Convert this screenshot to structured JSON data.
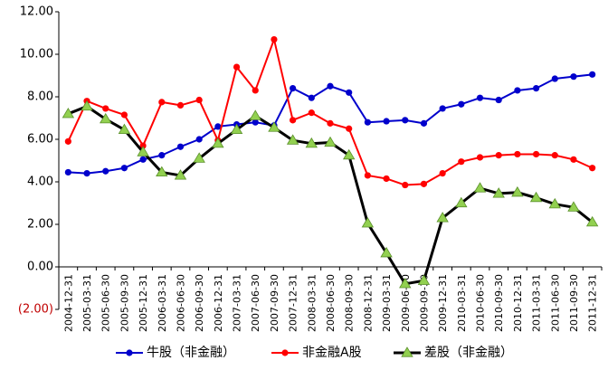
{
  "chart_data": {
    "type": "line",
    "title": "",
    "xlabel": "",
    "ylabel": "",
    "ylim": [
      -2,
      12
    ],
    "yticks": [
      -2,
      0,
      2,
      4,
      6,
      8,
      10,
      12
    ],
    "ytick_labels": [
      "(2.00)",
      "0.00",
      "2.00",
      "4.00",
      "6.00",
      "8.00",
      "10.00",
      "12.00"
    ],
    "negative_tick_color": "#c00000",
    "grid": false,
    "legend_position": "bottom",
    "categories": [
      "2004-12-31",
      "2005-03-31",
      "2005-06-30",
      "2005-09-30",
      "2005-12-31",
      "2006-03-31",
      "2006-06-30",
      "2006-09-30",
      "2006-12-31",
      "2007-03-31",
      "2007-06-30",
      "2007-09-30",
      "2007-12-31",
      "2008-03-31",
      "2008-06-30",
      "2008-09-30",
      "2008-12-31",
      "2009-03-31",
      "2009-06-30",
      "2009-09-30",
      "2009-12-31",
      "2010-03-31",
      "2010-06-30",
      "2010-09-30",
      "2010-12-31",
      "2011-03-31",
      "2011-06-30",
      "2011-09-30",
      "2011-12-31"
    ],
    "series": [
      {
        "name": "牛股（非金融）",
        "color": "#0000cc",
        "marker": "circle",
        "values": [
          4.45,
          4.4,
          4.5,
          4.65,
          5.05,
          5.25,
          5.65,
          6.0,
          6.6,
          6.7,
          6.8,
          6.65,
          8.4,
          7.95,
          8.5,
          8.2,
          6.8,
          6.85,
          6.9,
          6.75,
          7.45,
          7.65,
          7.95,
          7.85,
          8.3,
          8.4,
          8.85,
          8.95,
          9.05
        ]
      },
      {
        "name": "非金融A股",
        "color": "#ff0000",
        "marker": "circle",
        "values": [
          5.9,
          7.8,
          7.45,
          7.15,
          5.7,
          7.75,
          7.6,
          7.85,
          5.95,
          9.4,
          8.3,
          10.7,
          6.9,
          7.25,
          6.75,
          6.5,
          4.3,
          4.15,
          3.85,
          3.9,
          4.4,
          4.95,
          5.15,
          5.25,
          5.3,
          5.3,
          5.25,
          5.05,
          4.65
        ]
      },
      {
        "name": "差股（非金融）",
        "color": "#000000",
        "marker": "triangle",
        "marker_fill": "#92d050",
        "values": [
          7.2,
          7.55,
          6.95,
          6.45,
          5.4,
          4.45,
          4.3,
          5.1,
          5.8,
          6.45,
          7.1,
          6.55,
          5.95,
          5.8,
          5.85,
          5.25,
          2.05,
          0.65,
          -0.8,
          -0.65,
          2.3,
          3.0,
          3.7,
          3.45,
          3.5,
          3.25,
          2.95,
          2.8,
          2.1
        ]
      }
    ]
  }
}
